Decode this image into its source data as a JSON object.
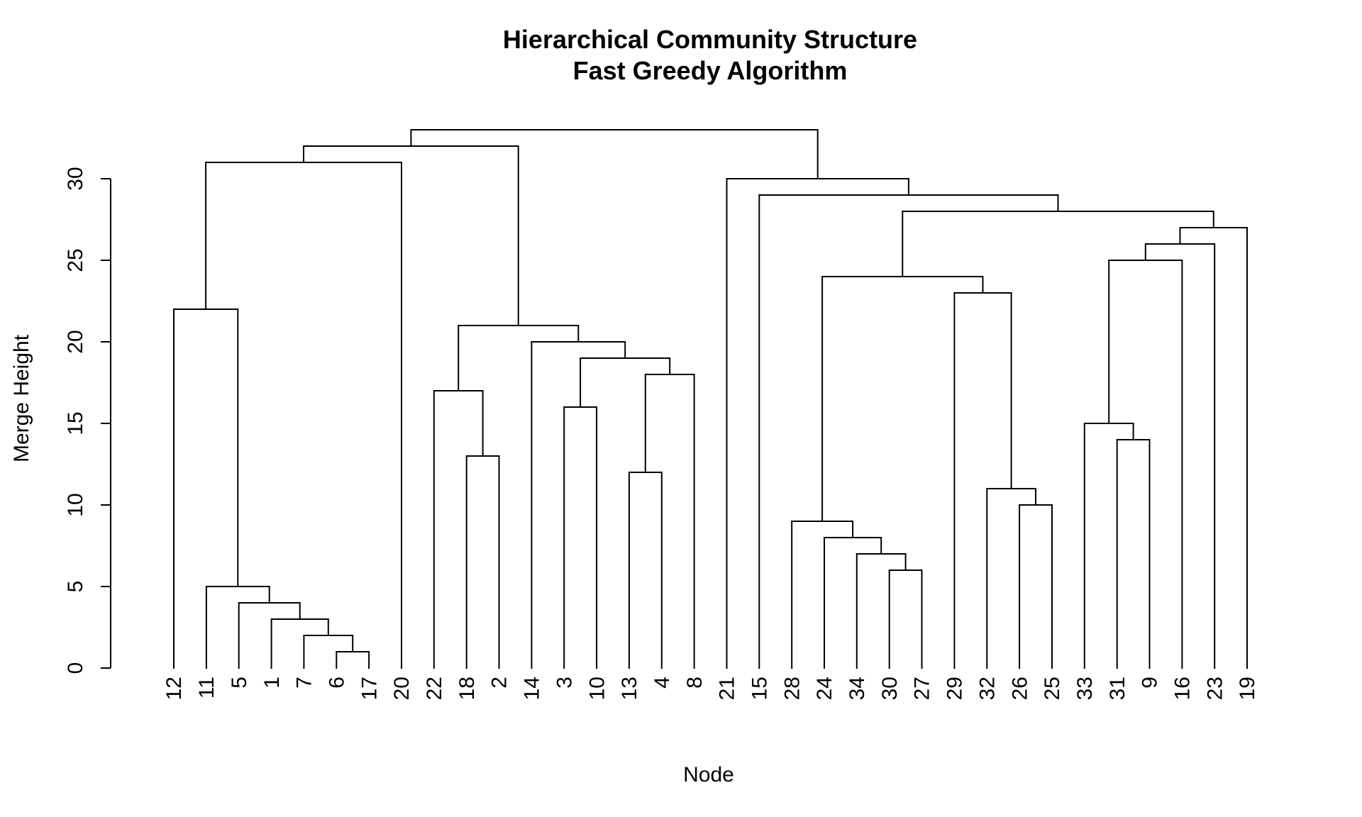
{
  "page": {
    "background": "#ffffff",
    "text_color": "#000000"
  },
  "chart_data": {
    "type": "dendrogram",
    "title": "Hierarchical Community Structure",
    "subtitle": "Fast Greedy Algorithm",
    "xlabel": "Node",
    "ylabel": "Merge Height",
    "yticks": [
      0,
      5,
      10,
      15,
      20,
      25,
      30
    ],
    "ylim": [
      0,
      33
    ],
    "grid": false,
    "legend": "none",
    "line_color": "#000000",
    "leaves": [
      "12",
      "11",
      "5",
      "1",
      "7",
      "6",
      "17",
      "20",
      "22",
      "18",
      "2",
      "14",
      "3",
      "10",
      "13",
      "4",
      "8",
      "21",
      "15",
      "28",
      "24",
      "34",
      "30",
      "27",
      "29",
      "32",
      "26",
      "25",
      "33",
      "31",
      "9",
      "16",
      "23",
      "19"
    ],
    "merges": [
      [
        1,
        "L5",
        "L6"
      ],
      [
        2,
        "M1",
        "L4"
      ],
      [
        3,
        "M2",
        "L3"
      ],
      [
        4,
        "M3",
        "L2"
      ],
      [
        5,
        "M4",
        "L1"
      ],
      [
        6,
        "L22",
        "L23"
      ],
      [
        7,
        "M6",
        "L21"
      ],
      [
        8,
        "M7",
        "L20"
      ],
      [
        9,
        "M8",
        "L19"
      ],
      [
        10,
        "L26",
        "L27"
      ],
      [
        11,
        "M10",
        "L25"
      ],
      [
        12,
        "L14",
        "L15"
      ],
      [
        13,
        "L9",
        "L10"
      ],
      [
        14,
        "L29",
        "L30"
      ],
      [
        15,
        "M14",
        "L28"
      ],
      [
        16,
        "L12",
        "L13"
      ],
      [
        17,
        "M13",
        "L8"
      ],
      [
        18,
        "M12",
        "L16"
      ],
      [
        19,
        "M16",
        "M18"
      ],
      [
        20,
        "M19",
        "L11"
      ],
      [
        21,
        "M17",
        "M20"
      ],
      [
        22,
        "M5",
        "L0"
      ],
      [
        23,
        "M11",
        "L24"
      ],
      [
        24,
        "M9",
        "M23"
      ],
      [
        25,
        "M15",
        "L31"
      ],
      [
        26,
        "M25",
        "L32"
      ],
      [
        27,
        "M26",
        "L33"
      ],
      [
        28,
        "M24",
        "M27"
      ],
      [
        29,
        "M28",
        "L18"
      ],
      [
        30,
        "M29",
        "L17"
      ],
      [
        31,
        "M22",
        "L7"
      ],
      [
        32,
        "M31",
        "M21"
      ],
      [
        33,
        "M32",
        "M30"
      ]
    ]
  }
}
